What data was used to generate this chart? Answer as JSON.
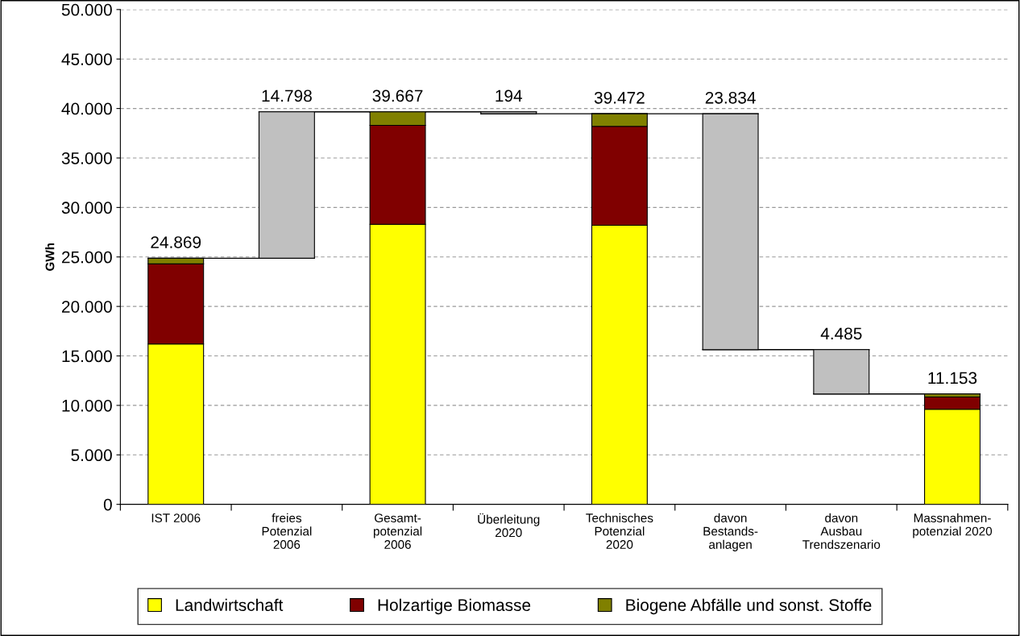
{
  "chart_data": {
    "type": "bar",
    "stacked": true,
    "ylabel": "GWh",
    "categories": [
      "IST 2006",
      "freies\nPotenzial\n2006",
      "Gesamt-\npotenzial\n2006",
      "Überleitung\n2020",
      "Technisches\nPotenzial\n2020",
      "davon\nBestands-\nanlagen",
      "davon\nAusbau\nTrendszenario",
      "Massnahmen-\npotenzial 2020"
    ],
    "series": [
      {
        "name": "Landwirtschaft",
        "color": "#ffff00",
        "values": [
          16200,
          null,
          28300,
          null,
          28200,
          null,
          null,
          9600
        ]
      },
      {
        "name": "Holzartige Biomasse",
        "color": "#800000",
        "values": [
          8100,
          null,
          10000,
          null,
          10000,
          null,
          null,
          1250
        ]
      },
      {
        "name": "Biogene Abfälle und sonst. Stoffe",
        "color": "#808000",
        "values": [
          569,
          null,
          1367,
          null,
          1272,
          null,
          null,
          303
        ]
      },
      {
        "color": "#c0c0c0",
        "values": [
          null,
          14798,
          null,
          194,
          null,
          23834,
          4485,
          null
        ],
        "base": [
          null,
          24869,
          null,
          39472,
          null,
          15638,
          11153,
          null
        ]
      }
    ],
    "value_labels": [
      "24.869",
      "14.798",
      "39.667",
      "194",
      "39.472",
      "23.834",
      "4.485",
      "11.153"
    ],
    "ylim": [
      0,
      50000
    ],
    "yticks": [
      0,
      {
        "value": 5000,
        "label": "5.000"
      },
      {
        "value": 10000,
        "label": "10.000"
      },
      {
        "value": 15000,
        "label": "15.000"
      },
      {
        "value": 20000,
        "label": "20.000"
      },
      {
        "value": 25000,
        "label": "25.000"
      },
      {
        "value": 30000,
        "label": "30.000"
      },
      {
        "value": 35000,
        "label": "35.000"
      },
      {
        "value": 40000,
        "label": "40.000"
      },
      {
        "value": 45000,
        "label": "45.000"
      },
      {
        "value": 50000,
        "label": "50.000"
      }
    ],
    "grid": "y",
    "legend": "bottom"
  }
}
